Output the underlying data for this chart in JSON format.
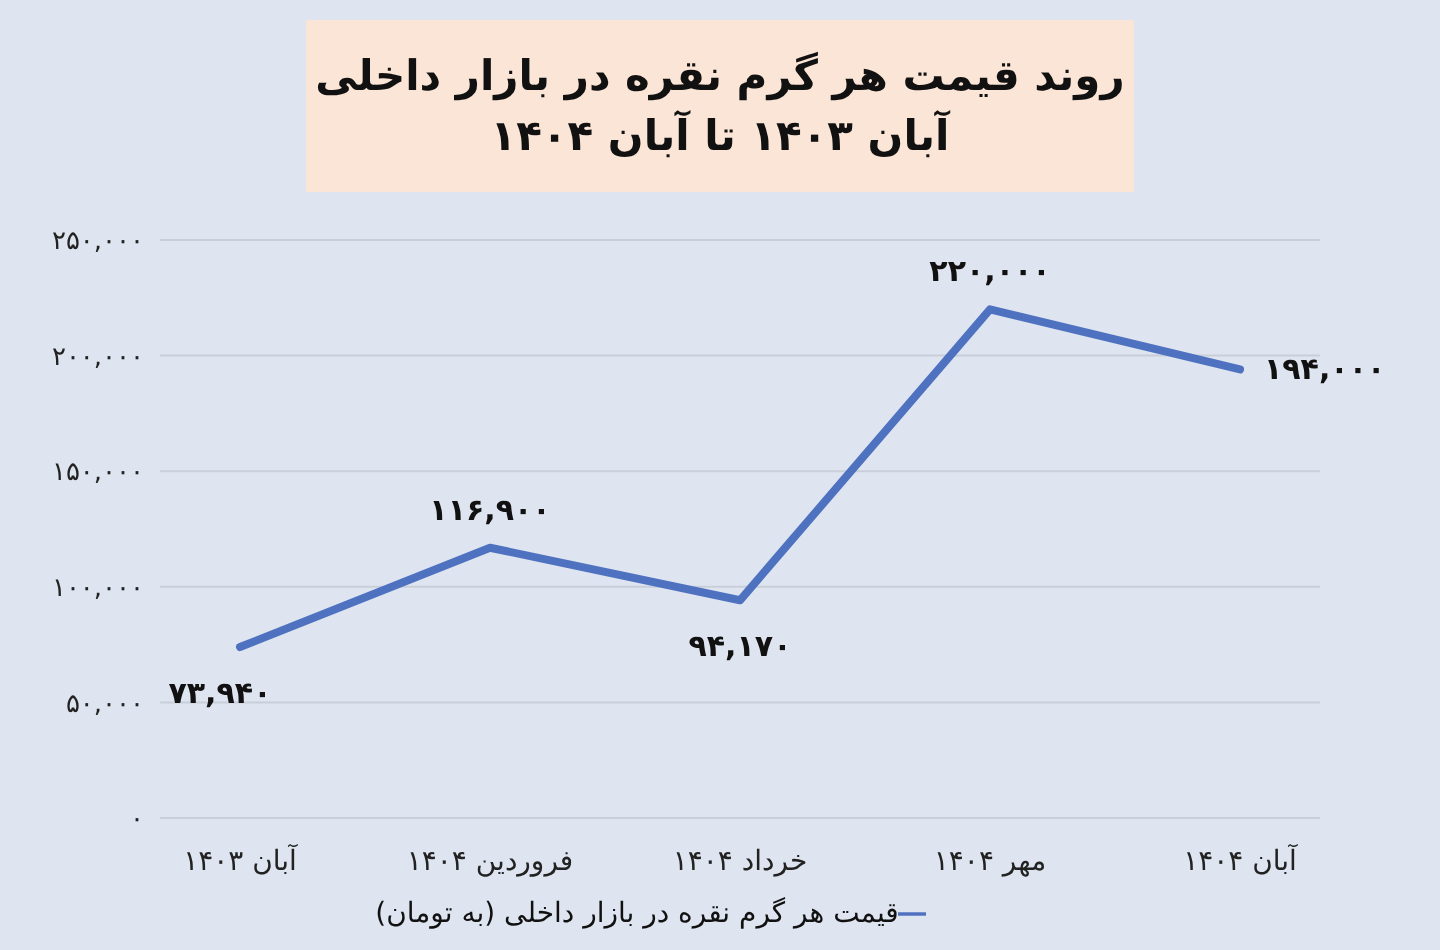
{
  "chart_data": {
    "type": "line",
    "title": "روند قیمت هر گرم نقره در بازار داخلی",
    "subtitle": "آبان ۱۴۰۳ تا آبان ۱۴۰۴",
    "categories": [
      "آبان ۱۴۰۳",
      "فروردین ۱۴۰۴",
      "خرداد ۱۴۰۴",
      "مهر ۱۴۰۴",
      "آبان ۱۴۰۴"
    ],
    "series": [
      {
        "name": "قیمت هر گرم نقره در بازار داخلی (به تومان)",
        "color": "#4f72c0",
        "values": [
          73940,
          116900,
          94170,
          220000,
          194000
        ],
        "value_labels": [
          "۷۳,۹۴۰",
          "۱۱۶,۹۰۰",
          "۹۴,۱۷۰",
          "۲۲۰,۰۰۰",
          "۱۹۴,۰۰۰"
        ]
      }
    ],
    "ylim": [
      0,
      250000
    ],
    "yticks": [
      {
        "value": 0,
        "label": "۰"
      },
      {
        "value": 50000,
        "label": "۵۰,۰۰۰"
      },
      {
        "value": 100000,
        "label": "۱۰۰,۰۰۰"
      },
      {
        "value": 150000,
        "label": "۱۵۰,۰۰۰"
      },
      {
        "value": 200000,
        "label": "۲۰۰,۰۰۰"
      },
      {
        "value": 250000,
        "label": "۲۵۰,۰۰۰"
      }
    ],
    "grid": "y",
    "legend": "bottom",
    "marker": "none",
    "line_style": "solid"
  }
}
